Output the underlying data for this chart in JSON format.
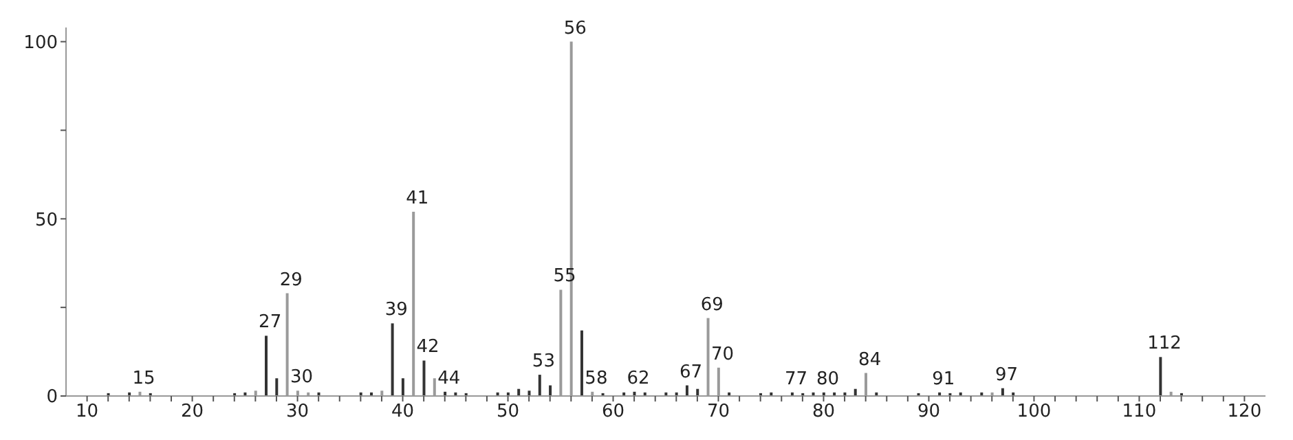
{
  "chart_data": {
    "type": "bar",
    "x": [
      12,
      14,
      15,
      16,
      24,
      25,
      26,
      27,
      28,
      29,
      30,
      31,
      32,
      36,
      37,
      38,
      39,
      40,
      41,
      42,
      43,
      44,
      45,
      46,
      49,
      50,
      51,
      52,
      53,
      54,
      55,
      56,
      57,
      58,
      59,
      61,
      62,
      63,
      65,
      66,
      67,
      68,
      69,
      70,
      71,
      74,
      75,
      77,
      78,
      79,
      80,
      81,
      82,
      83,
      84,
      85,
      89,
      91,
      92,
      93,
      95,
      96,
      97,
      98,
      112,
      113,
      114
    ],
    "values": [
      0.8,
      1,
      1.2,
      0.8,
      0.8,
      1,
      1.5,
      17,
      5,
      29,
      1.5,
      1,
      1,
      1,
      1,
      1.5,
      20.5,
      5,
      52,
      10,
      5,
      1.2,
      1,
      0.8,
      1,
      1,
      2,
      1.5,
      6,
      3,
      30,
      100,
      18.5,
      1.2,
      0.8,
      1,
      1.2,
      1,
      1,
      1,
      3,
      2,
      22,
      8,
      1,
      0.8,
      1,
      1,
      0.8,
      1,
      1,
      1,
      1,
      2,
      6.5,
      1,
      0.8,
      1,
      0.8,
      1,
      1,
      1,
      2.2,
      1,
      11,
      1.2,
      0.8
    ],
    "colors": [
      "#333333",
      "#333333",
      "#9a9a9a",
      "#333333",
      "#333333",
      "#333333",
      "#9a9a9a",
      "#333333",
      "#333333",
      "#9a9a9a",
      "#9a9a9a",
      "#9a9a9a",
      "#333333",
      "#333333",
      "#333333",
      "#9a9a9a",
      "#333333",
      "#333333",
      "#9a9a9a",
      "#333333",
      "#9a9a9a",
      "#333333",
      "#333333",
      "#333333",
      "#333333",
      "#333333",
      "#333333",
      "#333333",
      "#333333",
      "#333333",
      "#9a9a9a",
      "#9a9a9a",
      "#333333",
      "#9a9a9a",
      "#333333",
      "#333333",
      "#333333",
      "#333333",
      "#333333",
      "#333333",
      "#333333",
      "#333333",
      "#9a9a9a",
      "#9a9a9a",
      "#333333",
      "#333333",
      "#333333",
      "#333333",
      "#333333",
      "#333333",
      "#333333",
      "#333333",
      "#333333",
      "#333333",
      "#9a9a9a",
      "#333333",
      "#333333",
      "#333333",
      "#333333",
      "#333333",
      "#333333",
      "#9a9a9a",
      "#333333",
      "#333333",
      "#333333",
      "#9a9a9a",
      "#333333"
    ],
    "xlim": [
      8,
      122
    ],
    "xticks": [
      10,
      {
        "value": 12,
        "label": null
      },
      {
        "value": 14,
        "label": null
      },
      {
        "value": 16,
        "label": null
      },
      {
        "value": 18,
        "label": null
      },
      20,
      {
        "value": 22,
        "label": null
      },
      {
        "value": 24,
        "label": null
      },
      {
        "value": 26,
        "label": null
      },
      {
        "value": 28,
        "label": null
      },
      30,
      {
        "value": 32,
        "label": null
      },
      {
        "value": 34,
        "label": null
      },
      {
        "value": 36,
        "label": null
      },
      {
        "value": 38,
        "label": null
      },
      40,
      {
        "value": 42,
        "label": null
      },
      {
        "value": 44,
        "label": null
      },
      {
        "value": 46,
        "label": null
      },
      {
        "value": 48,
        "label": null
      },
      50,
      {
        "value": 52,
        "label": null
      },
      {
        "value": 54,
        "label": null
      },
      {
        "value": 56,
        "label": null
      },
      {
        "value": 58,
        "label": null
      },
      60,
      {
        "value": 62,
        "label": null
      },
      {
        "value": 64,
        "label": null
      },
      {
        "value": 66,
        "label": null
      },
      {
        "value": 68,
        "label": null
      },
      70,
      {
        "value": 72,
        "label": null
      },
      {
        "value": 74,
        "label": null
      },
      {
        "value": 76,
        "label": null
      },
      {
        "value": 78,
        "label": null
      },
      80,
      {
        "value": 82,
        "label": null
      },
      {
        "value": 84,
        "label": null
      },
      {
        "value": 86,
        "label": null
      },
      {
        "value": 88,
        "label": null
      },
      90,
      {
        "value": 92,
        "label": null
      },
      {
        "value": 94,
        "label": null
      },
      {
        "value": 96,
        "label": null
      },
      {
        "value": 98,
        "label": null
      },
      100,
      {
        "value": 102,
        "label": null
      },
      {
        "value": 104,
        "label": null
      },
      {
        "value": 106,
        "label": null
      },
      {
        "value": 108,
        "label": null
      },
      110,
      {
        "value": 112,
        "label": null
      },
      {
        "value": 114,
        "label": null
      },
      {
        "value": 116,
        "label": null
      },
      {
        "value": 118,
        "label": null
      },
      120
    ],
    "ylim": [
      0,
      104
    ],
    "yticks": [
      0,
      {
        "value": 25,
        "label": null
      },
      50,
      {
        "value": 75,
        "label": null
      },
      100
    ],
    "grid": false,
    "legend": false,
    "annotations": [
      {
        "text": "15",
        "x": 15,
        "y": 1.2
      },
      {
        "text": "27",
        "x": 27,
        "y": 17
      },
      {
        "text": "29",
        "x": 29,
        "y": 29
      },
      {
        "text": "30",
        "x": 30,
        "y": 1.5
      },
      {
        "text": "39",
        "x": 39,
        "y": 20.5
      },
      {
        "text": "41",
        "x": 41,
        "y": 52
      },
      {
        "text": "42",
        "x": 42,
        "y": 10
      },
      {
        "text": "44",
        "x": 44,
        "y": 1.2
      },
      {
        "text": "53",
        "x": 53,
        "y": 6
      },
      {
        "text": "55",
        "x": 55,
        "y": 30
      },
      {
        "text": "56",
        "x": 56,
        "y": 100
      },
      {
        "text": "58",
        "x": 58,
        "y": 1.2
      },
      {
        "text": "62",
        "x": 62,
        "y": 1.2
      },
      {
        "text": "67",
        "x": 67,
        "y": 3
      },
      {
        "text": "69",
        "x": 69,
        "y": 22
      },
      {
        "text": "70",
        "x": 70,
        "y": 8
      },
      {
        "text": "77",
        "x": 77,
        "y": 1
      },
      {
        "text": "80",
        "x": 80,
        "y": 1
      },
      {
        "text": "84",
        "x": 84,
        "y": 6.5
      },
      {
        "text": "91",
        "x": 91,
        "y": 1
      },
      {
        "text": "97",
        "x": 97,
        "y": 2.2
      },
      {
        "text": "112",
        "x": 112,
        "y": 11
      }
    ]
  }
}
